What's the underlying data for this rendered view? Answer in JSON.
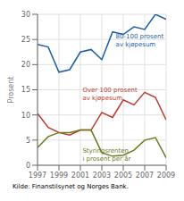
{
  "chart_data": {
    "type": "line",
    "x": [
      1997,
      1998,
      1999,
      2000,
      2001,
      2002,
      2003,
      2004,
      2005,
      2006,
      2007,
      2008,
      2009
    ],
    "series": [
      {
        "color": "#1a5fa8",
        "values": [
          24.0,
          23.5,
          18.5,
          19.0,
          22.5,
          23.0,
          21.0,
          26.5,
          26.0,
          27.5,
          27.0,
          30.0,
          29.0
        ]
      },
      {
        "color": "#c0392b",
        "values": [
          10.3,
          7.5,
          6.5,
          6.0,
          7.0,
          7.0,
          10.5,
          9.5,
          13.0,
          12.0,
          14.5,
          13.5,
          9.0
        ]
      },
      {
        "color": "#6a7a1f",
        "values": [
          3.5,
          5.7,
          6.5,
          6.5,
          7.0,
          7.0,
          2.5,
          1.8,
          2.0,
          3.0,
          5.0,
          5.5,
          1.5
        ]
      }
    ],
    "xlim": [
      1997,
      2009
    ],
    "xticks": [
      1997,
      1999,
      2001,
      2003,
      2005,
      2007,
      2009
    ],
    "ylim": [
      0,
      30
    ],
    "yticks": [
      0,
      5,
      10,
      15,
      20,
      25,
      30
    ],
    "ylabel": "Prosent",
    "grid": true,
    "annotations": [
      {
        "text": "80-100 prosent\nav kjøpesum",
        "x": 2004.3,
        "y": 23.5,
        "color": "#1a5fa8"
      },
      {
        "text": "Over 100 prosent\nav kjøpesum",
        "x": 2001.2,
        "y": 12.8,
        "color": "#c0392b"
      },
      {
        "text": "Styringsrenten\ni prosent per år",
        "x": 2001.2,
        "y": 3.8,
        "color": "#6a7a1f"
      }
    ],
    "source": "Kilde: Finanstilsynet og Norges Bank."
  }
}
